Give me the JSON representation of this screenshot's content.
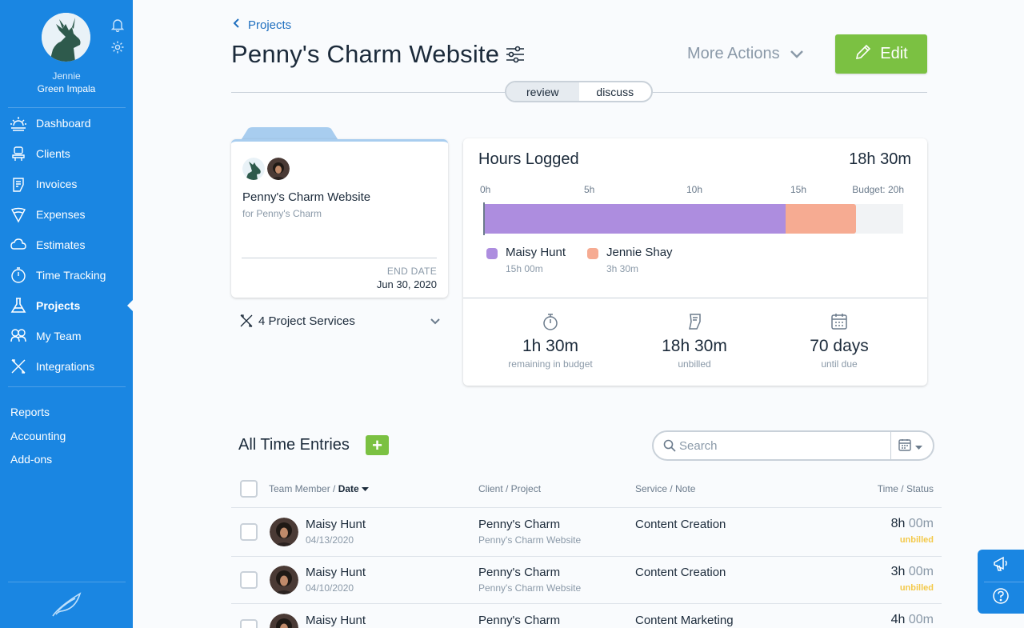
{
  "user": {
    "first_name": "Jennie",
    "last_name": "Green Impala"
  },
  "sidebar": {
    "items": [
      {
        "label": "Dashboard",
        "icon": "sun-icon"
      },
      {
        "label": "Clients",
        "icon": "clients-icon"
      },
      {
        "label": "Invoices",
        "icon": "invoice-icon"
      },
      {
        "label": "Expenses",
        "icon": "expenses-icon"
      },
      {
        "label": "Estimates",
        "icon": "estimates-icon"
      },
      {
        "label": "Time Tracking",
        "icon": "stopwatch-icon"
      },
      {
        "label": "Projects",
        "icon": "flask-icon",
        "active": true
      },
      {
        "label": "My Team",
        "icon": "team-icon"
      },
      {
        "label": "Integrations",
        "icon": "tools-icon"
      }
    ],
    "links": [
      "Reports",
      "Accounting",
      "Add-ons"
    ]
  },
  "header": {
    "back_label": "Projects",
    "title": "Penny's Charm Website",
    "more_actions": "More Actions",
    "edit_label": "Edit",
    "toggle": {
      "options": [
        "review",
        "discuss"
      ],
      "selected": "review"
    }
  },
  "project_card": {
    "name": "Penny's Charm Website",
    "client": "for Penny's Charm",
    "end_date_label": "END DATE",
    "end_date": "Jun 30, 2020",
    "services_label": "4 Project Services"
  },
  "hours": {
    "title": "Hours Logged",
    "total": "18h 30m",
    "ticks": [
      "0h",
      "5h",
      "10h",
      "15h",
      "Budget: 20h"
    ],
    "budget_hours": 20,
    "members": [
      {
        "name": "Maisy Hunt",
        "value": "15h 00m",
        "hours": 15,
        "color": "#ad8ddf"
      },
      {
        "name": "Jennie Shay",
        "value": "3h 30m",
        "hours": 3.5,
        "color": "#f6ab92"
      }
    ],
    "stats": [
      {
        "value": "1h 30m",
        "label": "remaining in budget",
        "icon": "stopwatch-icon"
      },
      {
        "value": "18h 30m",
        "label": "unbilled",
        "icon": "invoice-icon"
      },
      {
        "value": "70 days",
        "label": "until due",
        "icon": "calendar-icon"
      }
    ]
  },
  "time_entries": {
    "title": "All Time Entries",
    "search_placeholder": "Search",
    "columns": {
      "member": "Team Member /",
      "date": "Date",
      "client": "Client / Project",
      "service": "Service / Note",
      "time": "Time / Status"
    },
    "rows": [
      {
        "name": "Maisy Hunt",
        "date": "04/13/2020",
        "client": "Penny's Charm",
        "project": "Penny's Charm Website",
        "service": "Content Creation",
        "hours": "8h",
        "minutes": "00m",
        "status": "unbilled"
      },
      {
        "name": "Maisy Hunt",
        "date": "04/10/2020",
        "client": "Penny's Charm",
        "project": "Penny's Charm Website",
        "service": "Content Creation",
        "hours": "3h",
        "minutes": "00m",
        "status": "unbilled"
      },
      {
        "name": "Maisy Hunt",
        "date": "",
        "client": "Penny's Charm",
        "project": "",
        "service": "Content Marketing",
        "hours": "4h",
        "minutes": "00m",
        "status": ""
      }
    ]
  },
  "colors": {
    "sidebar": "#1a86e2",
    "accent_green": "#7bc142",
    "link_blue": "#1f6fbf",
    "unbilled": "#f3c94a"
  }
}
